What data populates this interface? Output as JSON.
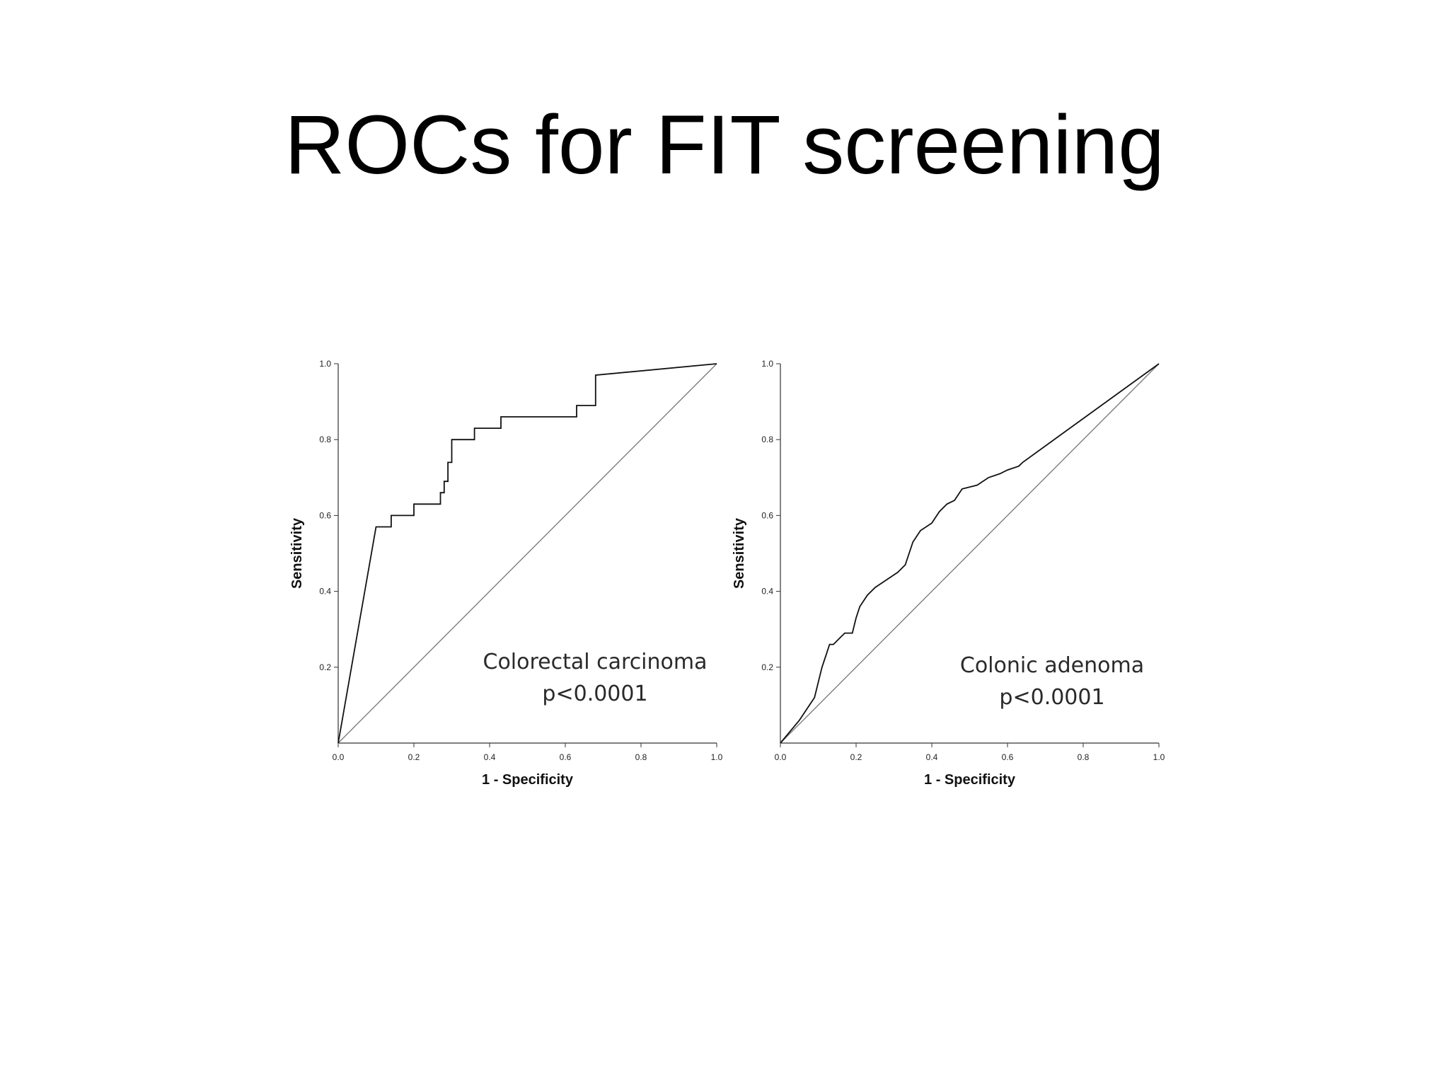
{
  "title": "ROCs for FIT screening",
  "colors": {
    "background": "#ffffff",
    "curve": "#111111",
    "reference_line": "#777777",
    "axis": "#333333"
  },
  "chart_data": [
    {
      "type": "line",
      "xlabel": "1 - Specificity",
      "ylabel": "Sensitivity",
      "xlim": [
        0,
        1
      ],
      "ylim": [
        0,
        1
      ],
      "xticks": [
        "0.0",
        "0.2",
        "0.4",
        "0.6",
        "0.8",
        "1.0"
      ],
      "yticks": [
        "0.2",
        "0.4",
        "0.6",
        "0.8",
        "1.0"
      ],
      "grid": false,
      "annotation": [
        "Colorectal carcinoma",
        "p<0.0001"
      ],
      "reference_line": [
        [
          0,
          0
        ],
        [
          1,
          1
        ]
      ],
      "series": [
        {
          "x": [
            0,
            0.1,
            0.14,
            0.14,
            0.2,
            0.2,
            0.27,
            0.27,
            0.28,
            0.28,
            0.29,
            0.29,
            0.3,
            0.3,
            0.31,
            0.31,
            0.36,
            0.36,
            0.43,
            0.43,
            0.63,
            0.63,
            0.68,
            0.68,
            1.0
          ],
          "y": [
            0,
            0.57,
            0.57,
            0.6,
            0.6,
            0.63,
            0.63,
            0.66,
            0.66,
            0.69,
            0.69,
            0.74,
            0.74,
            0.8,
            0.8,
            0.8,
            0.8,
            0.83,
            0.83,
            0.86,
            0.86,
            0.89,
            0.89,
            0.97,
            1.0
          ]
        }
      ]
    },
    {
      "type": "line",
      "xlabel": "1 - Specificity",
      "ylabel": "Sensitivity",
      "xlim": [
        0,
        1
      ],
      "ylim": [
        0,
        1
      ],
      "xticks": [
        "0.0",
        "0.2",
        "0.4",
        "0.6",
        "0.8",
        "1.0"
      ],
      "yticks": [
        "0.2",
        "0.4",
        "0.6",
        "0.8",
        "1.0"
      ],
      "grid": false,
      "annotation": [
        "Colonic adenoma",
        "p<0.0001"
      ],
      "reference_line": [
        [
          0,
          0
        ],
        [
          1,
          1
        ]
      ],
      "series": [
        {
          "x": [
            0,
            0.05,
            0.09,
            0.1,
            0.11,
            0.12,
            0.13,
            0.14,
            0.16,
            0.17,
            0.19,
            0.2,
            0.21,
            0.23,
            0.25,
            0.28,
            0.31,
            0.33,
            0.34,
            0.35,
            0.37,
            0.4,
            0.42,
            0.44,
            0.46,
            0.48,
            0.52,
            0.55,
            0.58,
            0.6,
            0.63,
            0.64,
            1.0
          ],
          "y": [
            0,
            0.06,
            0.12,
            0.16,
            0.2,
            0.23,
            0.26,
            0.26,
            0.28,
            0.29,
            0.29,
            0.33,
            0.36,
            0.39,
            0.41,
            0.43,
            0.45,
            0.47,
            0.5,
            0.53,
            0.56,
            0.58,
            0.61,
            0.63,
            0.64,
            0.67,
            0.68,
            0.7,
            0.71,
            0.72,
            0.73,
            0.74,
            1.0
          ]
        }
      ]
    }
  ]
}
